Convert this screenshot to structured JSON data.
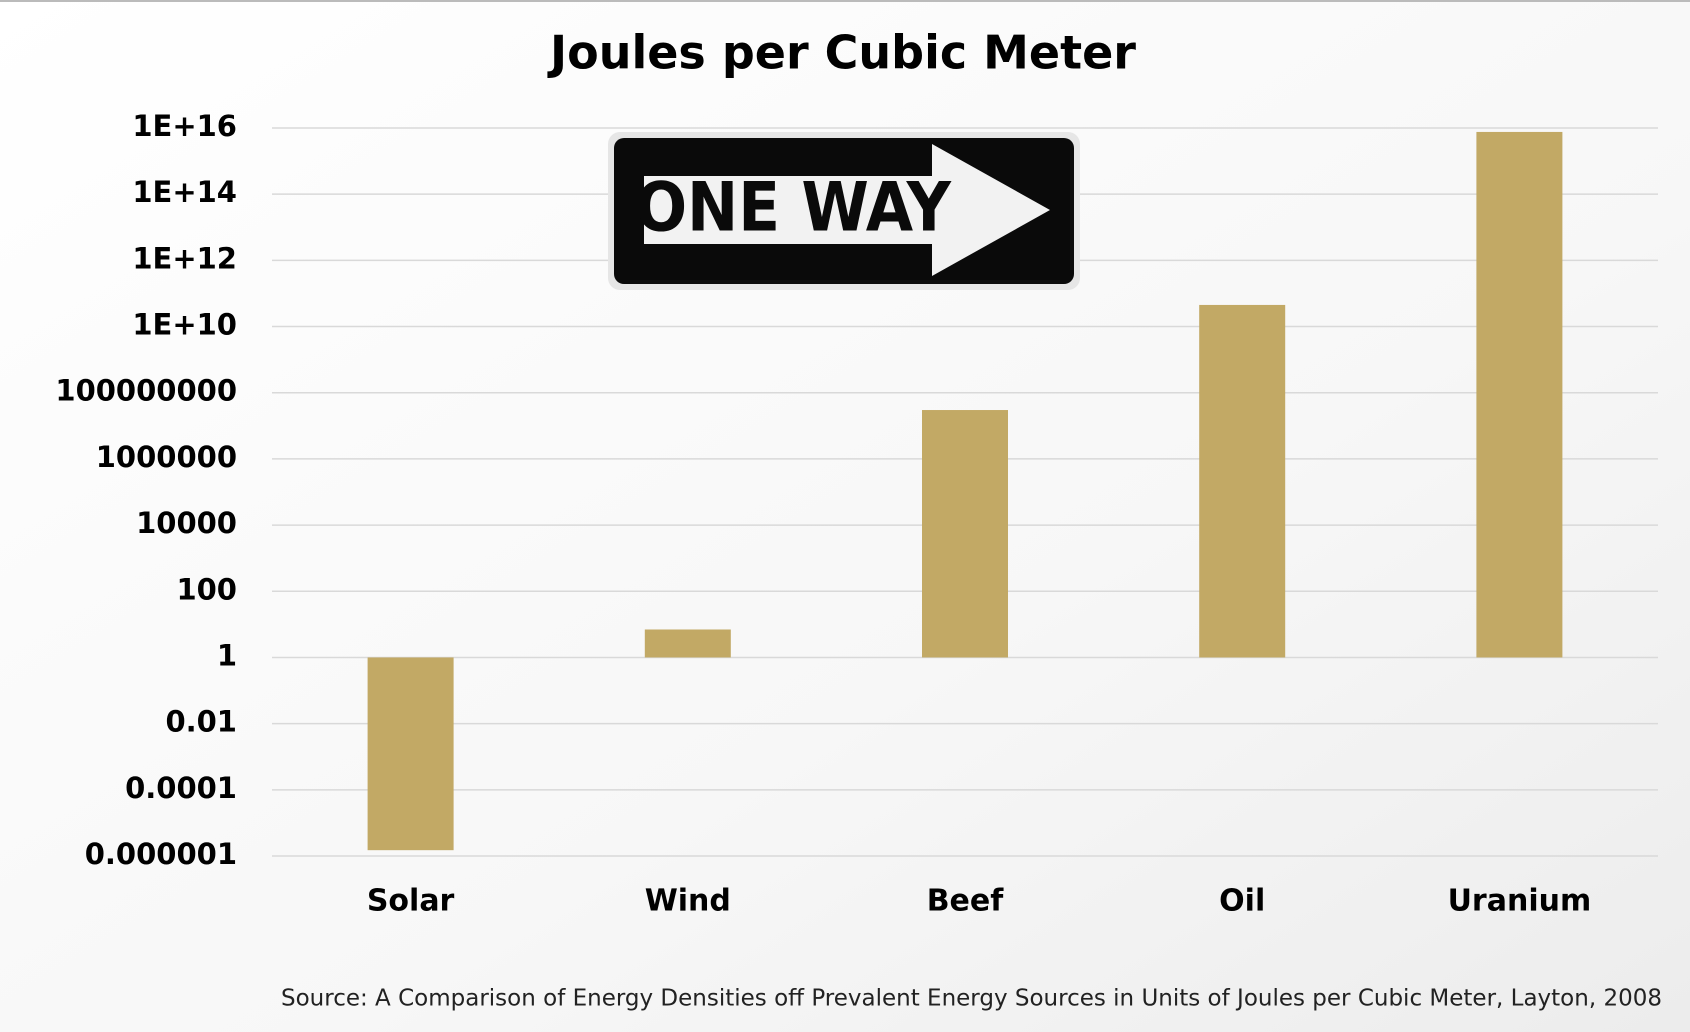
{
  "chart_data": {
    "type": "bar",
    "title": "Joules per Cubic Meter",
    "categories": [
      "Solar",
      "Wind",
      "Beef",
      "Oil",
      "Uranium"
    ],
    "values": [
      1.5e-06,
      7,
      30000000,
      45000000000,
      7600000000000000
    ],
    "color": "#c2a965",
    "log_scale": true,
    "ylim": [
      1e-06,
      10000000000000000
    ],
    "yticks": [
      1e-06,
      0.0001,
      0.01,
      1,
      100,
      10000,
      1000000,
      100000000,
      {
        "value": 10000000000,
        "label": "1E+10"
      },
      {
        "value": 1000000000000,
        "label": "1E+12"
      },
      {
        "value": 100000000000000,
        "label": "1E+14"
      },
      {
        "value": 10000000000000000,
        "label": "1E+16"
      }
    ],
    "grid": true,
    "sign": "ONE WAY",
    "source": "Source: A Comparison of Energy Densities off Prevalent Energy Sources in Units of Joules per Cubic Meter, Layton, 2008"
  }
}
